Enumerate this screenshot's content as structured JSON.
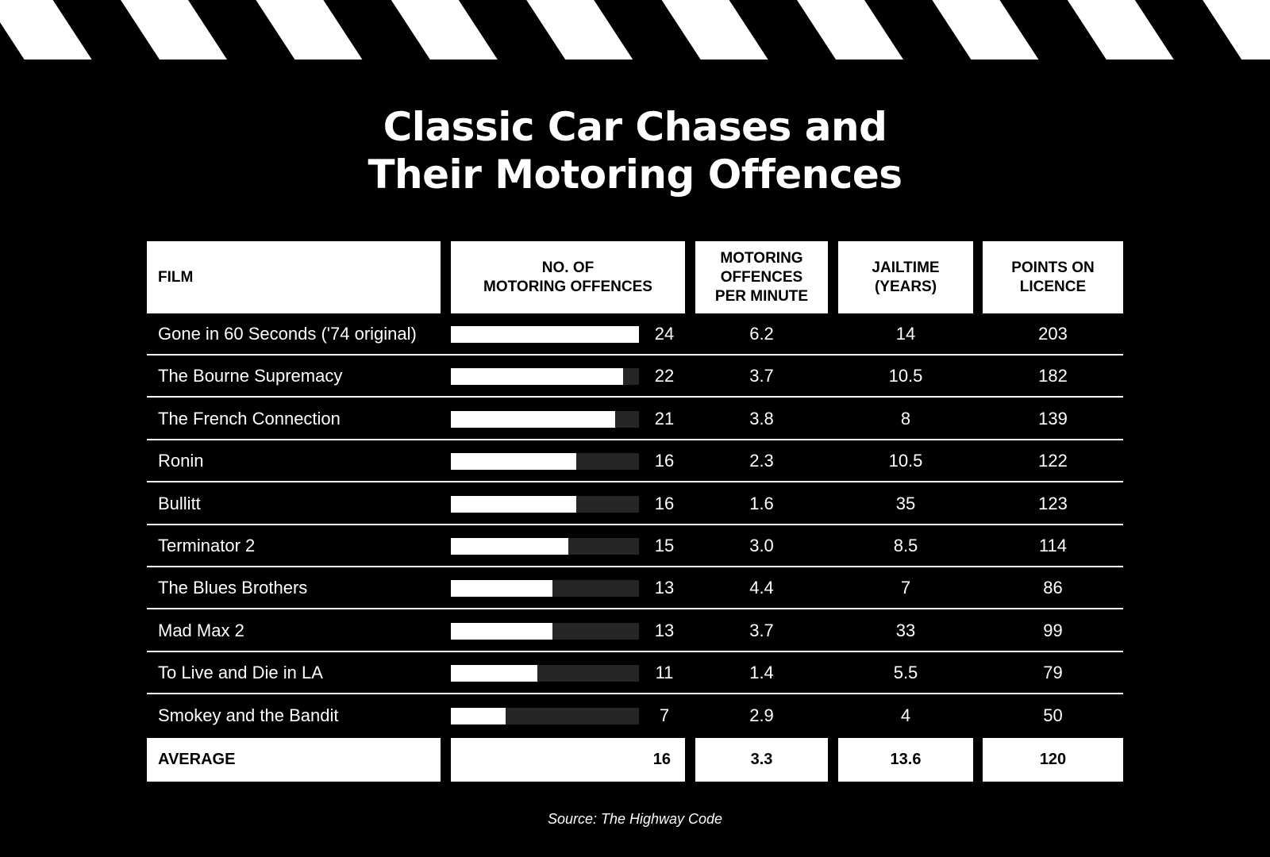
{
  "title_line1": "Classic Car Chases and",
  "title_line2": "Their Motoring Offences",
  "chart_data": {
    "type": "table",
    "columns": [
      "FILM",
      "NO. OF MOTORING OFFENCES",
      "MOTORING OFFENCES PER MINUTE",
      "JAILTIME (YEARS)",
      "POINTS ON LICENCE"
    ],
    "header": {
      "film": "FILM",
      "offences_1": "NO. OF",
      "offences_2": "MOTORING OFFENCES",
      "permin_1": "MOTORING",
      "permin_2": "OFFENCES",
      "permin_3": "PER MINUTE",
      "jail_1": "JAILTIME",
      "jail_2": "(YEARS)",
      "points_1": "POINTS ON",
      "points_2": "LICENCE"
    },
    "bar_max": 24,
    "rows": [
      {
        "film": "Gone in 60 Seconds ('74 original)",
        "offences": "24",
        "per_minute": "6.2",
        "jail": "14",
        "points": "203"
      },
      {
        "film": "The Bourne Supremacy",
        "offences": "22",
        "per_minute": "3.7",
        "jail": "10.5",
        "points": "182"
      },
      {
        "film": "The French Connection",
        "offences": "21",
        "per_minute": "3.8",
        "jail": "8",
        "points": "139"
      },
      {
        "film": "Ronin",
        "offences": "16",
        "per_minute": "2.3",
        "jail": "10.5",
        "points": "122"
      },
      {
        "film": "Bullitt",
        "offences": "16",
        "per_minute": "1.6",
        "jail": "35",
        "points": "123"
      },
      {
        "film": "Terminator 2",
        "offences": "15",
        "per_minute": "3.0",
        "jail": "8.5",
        "points": "114"
      },
      {
        "film": "The Blues Brothers",
        "offences": "13",
        "per_minute": "4.4",
        "jail": "7",
        "points": "86"
      },
      {
        "film": "Mad Max 2",
        "offences": "13",
        "per_minute": "3.7",
        "jail": "33",
        "points": "99"
      },
      {
        "film": "To Live and Die in LA",
        "offences": "11",
        "per_minute": "1.4",
        "jail": "5.5",
        "points": "79"
      },
      {
        "film": "Smokey and the Bandit",
        "offences": "7",
        "per_minute": "2.9",
        "jail": "4",
        "points": "50"
      }
    ],
    "average": {
      "label": "AVERAGE",
      "offences": "16",
      "per_minute": "3.3",
      "jail": "13.6",
      "points": "120"
    }
  },
  "colors": {
    "background": "#000000",
    "bar": "#ffffff",
    "bar_track": "#262626"
  },
  "source": "Source: The Highway Code"
}
